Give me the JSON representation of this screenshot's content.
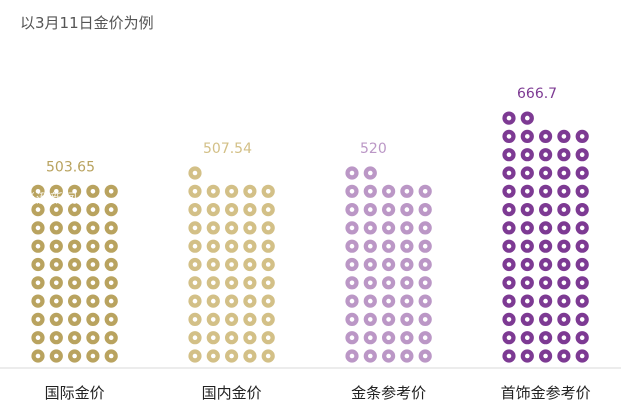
{
  "subtitle": "以3月11日金价为例",
  "watermark": "澎湃新闻",
  "chart_data": {
    "type": "bar",
    "categories": [
      "国际金价",
      "国内金价",
      "金条参考价",
      "首饰金参考价"
    ],
    "values": [
      503.65,
      507.54,
      520,
      666.7
    ],
    "value_labels": [
      "503.65",
      "507.54",
      "520",
      "666.7"
    ],
    "title": "以3月11日金价为例",
    "xlabel": "",
    "ylabel": "",
    "grid": false,
    "legend": "none",
    "colors": [
      "#b9a35f",
      "#d3c087",
      "#bb97c6",
      "#7d3a93"
    ],
    "label_colors": [
      "#b9a35f",
      "#d3c087",
      "#bb97c6",
      "#7d3a93"
    ]
  }
}
